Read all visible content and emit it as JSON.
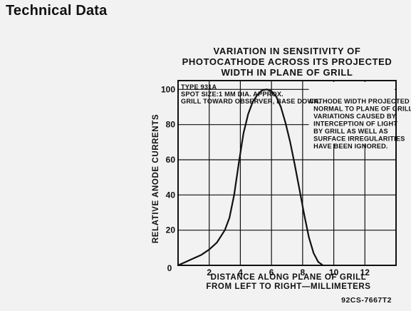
{
  "page": {
    "header": "Technical Data"
  },
  "chart_data": {
    "type": "line",
    "title_lines": [
      "VARIATION IN SENSITIVITY OF",
      "PHOTOCATHODE ACROSS ITS PROJECTED",
      "WIDTH IN PLANE OF GRILL"
    ],
    "info_lines": [
      "TYPE 931A",
      "SPOT SIZE:1 MM DIA. APPROX.",
      "GRILL TOWARD OBSERVER, BASE DOWN."
    ],
    "note_lines": [
      "CATHODE WIDTH PROJECTED",
      "NORMAL TO PLANE OF GRILL.",
      "VARIATIONS CAUSED BY",
      "INTERCEPTION OF LIGHT",
      "BY GRILL AS WELL AS",
      "SURFACE IRREGULARITIES",
      "HAVE BEEN IGNORED."
    ],
    "xlabel_lines": [
      "DISTANCE ALONG PLANE OF GRILL",
      "FROM LEFT TO RIGHT—MILLIMETERS"
    ],
    "ylabel": "RELATIVE ANODE CURRENTS",
    "origin_label": "0",
    "xlim": [
      0,
      14
    ],
    "ylim": [
      0,
      105
    ],
    "x_ticks": [
      2,
      4,
      6,
      8,
      10,
      12
    ],
    "x_tick_labels": [
      "2",
      "4",
      "6",
      "8",
      "10",
      "12"
    ],
    "y_ticks": [
      20,
      40,
      60,
      80,
      100
    ],
    "y_tick_labels": [
      "20",
      "40",
      "60",
      "80",
      "100"
    ],
    "grid": true,
    "series": [
      {
        "x": [
          0,
          0.5,
          1,
          1.5,
          2,
          2.5,
          3,
          3.3,
          3.6,
          3.9,
          4.2,
          4.5,
          4.8,
          5.1,
          5.4,
          5.7,
          6.0,
          6.3,
          6.6,
          6.9,
          7.2,
          7.5,
          7.8,
          8.1,
          8.4,
          8.7,
          9.0,
          9.3
        ],
        "y": [
          0,
          2,
          4,
          6,
          9,
          13,
          20,
          27,
          40,
          58,
          75,
          86,
          93,
          97,
          99.5,
          100,
          99,
          96,
          90,
          81,
          70,
          57,
          43,
          29,
          16,
          7,
          2,
          0
        ]
      }
    ],
    "figure_code": "92CS-7667T2"
  }
}
